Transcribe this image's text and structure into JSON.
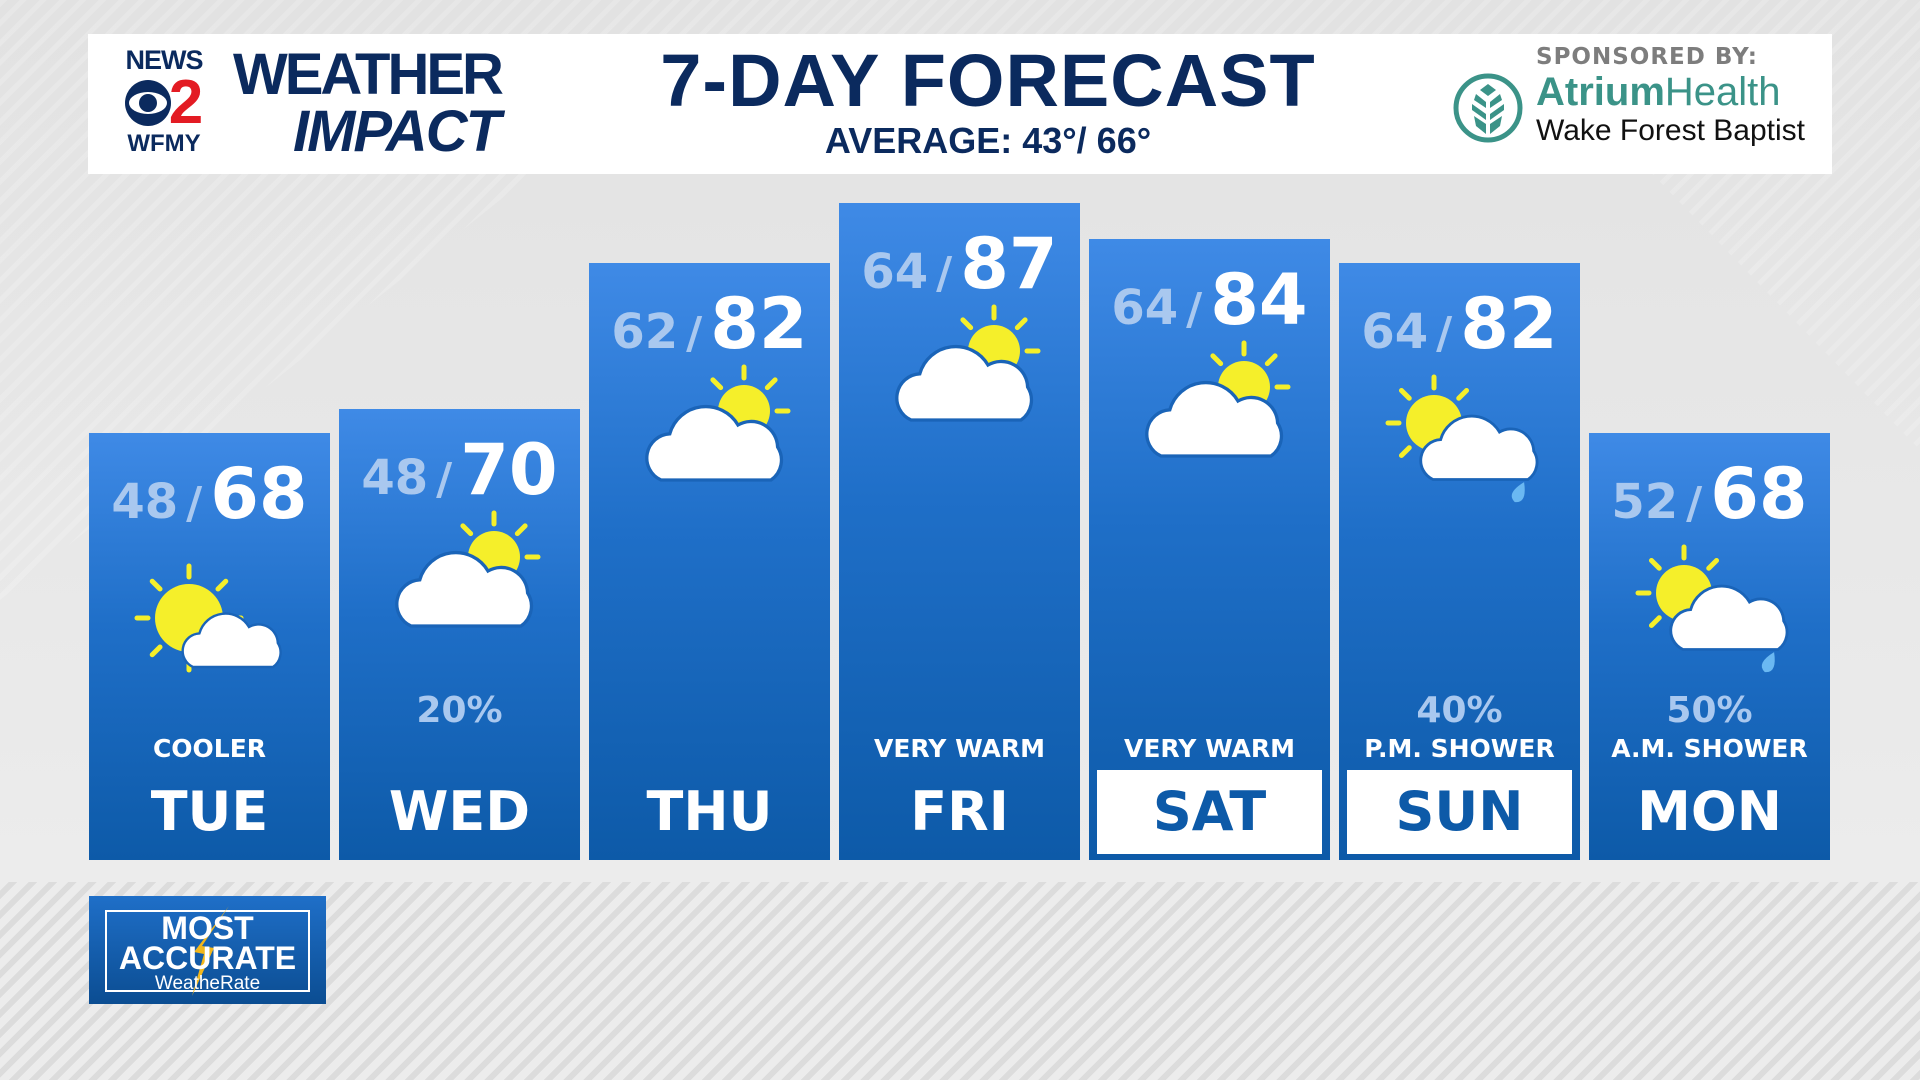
{
  "header": {
    "station_logo": {
      "top": "NEWS",
      "number": "2",
      "bottom": "WFMY"
    },
    "brand": {
      "line1": "WEATHER",
      "line2": "IMPACT"
    },
    "title": "7-DAY FORECAST",
    "average": "AVERAGE: 43°/ 66°",
    "sponsor_label": "SPONSORED BY:",
    "sponsor_name_1": "Atrium",
    "sponsor_name_2": "Health",
    "sponsor_name_3": "Wake Forest Baptist"
  },
  "days": [
    {
      "day": "TUE",
      "low": "48",
      "high": "68",
      "icon": "sun-cloud-icon",
      "precip": "",
      "desc": "COOLER",
      "highlight": false
    },
    {
      "day": "WED",
      "low": "48",
      "high": "70",
      "icon": "cloud-sun-icon",
      "precip": "20%",
      "desc": "",
      "highlight": false
    },
    {
      "day": "THU",
      "low": "62",
      "high": "82",
      "icon": "cloud-sun-icon",
      "precip": "",
      "desc": "",
      "highlight": false
    },
    {
      "day": "FRI",
      "low": "64",
      "high": "87",
      "icon": "cloud-sun-icon",
      "precip": "",
      "desc": "VERY WARM",
      "highlight": false
    },
    {
      "day": "SAT",
      "low": "64",
      "high": "84",
      "icon": "cloud-sun-icon",
      "precip": "",
      "desc": "VERY WARM",
      "highlight": true
    },
    {
      "day": "SUN",
      "low": "64",
      "high": "82",
      "icon": "sun-cloud-rain-icon",
      "precip": "40%",
      "desc": "P.M. SHOWER",
      "highlight": true
    },
    {
      "day": "MON",
      "low": "52",
      "high": "68",
      "icon": "sun-cloud-rain-icon",
      "precip": "50%",
      "desc": "A.M. SHOWER",
      "highlight": false
    }
  ],
  "badge": {
    "line1": "MOST",
    "line2": "ACCURATE",
    "line3": "WeatheRate"
  },
  "colors": {
    "navy": "#0b2a5e",
    "column_blue": "#1f6fc8",
    "sun": "#f5ef2a",
    "rain": "#6ab8f2",
    "cbs_red": "#e31b23",
    "atrium_teal": "#3b9388"
  }
}
